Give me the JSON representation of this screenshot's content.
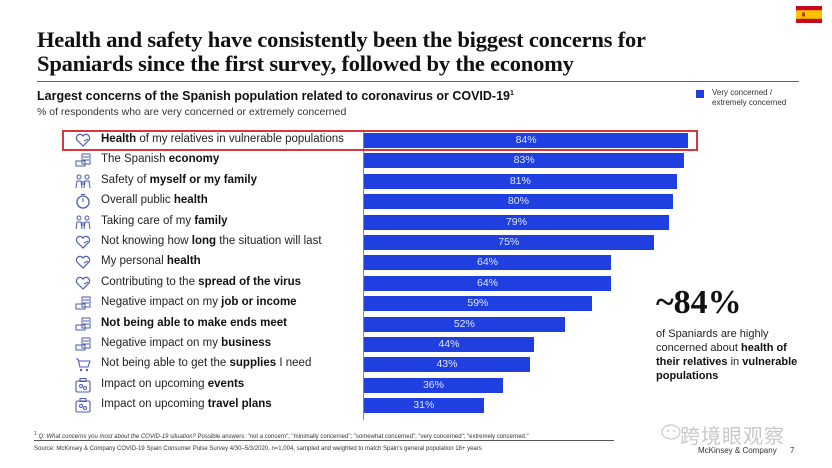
{
  "slide": {
    "title_line1": "Health and safety have consistently been the biggest concerns for",
    "title_line2": "Spaniards since the first survey, followed by the economy",
    "flag_icon": "spain-flag-icon",
    "brand": "McKinsey & Company",
    "page_number": "7"
  },
  "colors": {
    "bar": "#1f3fe0",
    "highlight": "#d9363e",
    "flag_red": "#c60b1e",
    "flag_yellow": "#ffc400"
  },
  "callout": {
    "stat": "~84%",
    "text_pre": "of Spaniards are highly concerned about ",
    "text_bold": "health of their relatives",
    "text_mid": " in ",
    "text_bold2": "vulnerable populations"
  },
  "footnote": {
    "marker": "1",
    "question": "Q: What concerns you most about the COVID-19 situation?",
    "answers": " Possible answers: \"not a concern\"; \"minimally concerned\"; \"somewhat concerned\"; \"very concerned\"; \"extremely concerned.\""
  },
  "source": "Source: McKinsey & Company COVID-19 Spain Consumer Pulse Survey 4/30–5/3/2020, n=1,004, sampled and weighted to match Spain's general population 18+ years",
  "watermark": "跨境眼观察",
  "chart_data": {
    "type": "bar",
    "orientation": "horizontal",
    "title": "Largest concerns of the Spanish population related to coronavirus or COVID-19",
    "title_superscript": "1",
    "subtitle": "% of respondents who are very concerned or extremely concerned",
    "legend": [
      {
        "name": "Very concerned / extremely concerned",
        "color": "#1f3fe0"
      }
    ],
    "legend_position": "top-right",
    "xlim": [
      0,
      100
    ],
    "grid": false,
    "highlighted_index": 0,
    "categories": [
      {
        "pre": "",
        "bold": "Health",
        "post": " of my relatives in vulnerable populations",
        "icon": "heart-hand-icon"
      },
      {
        "pre": "The Spanish ",
        "bold": "economy",
        "post": "",
        "icon": "money-stack-icon"
      },
      {
        "pre": "Safety of ",
        "bold": "myself or my family",
        "post": "",
        "icon": "family-icon"
      },
      {
        "pre": "Overall public ",
        "bold": "health",
        "post": "",
        "icon": "stopwatch-icon"
      },
      {
        "pre": "Taking care of my ",
        "bold": "family",
        "post": "",
        "icon": "family-icon"
      },
      {
        "pre": "Not knowing how ",
        "bold": "long",
        "post": " the situation will last",
        "icon": "heart-hand-icon"
      },
      {
        "pre": "My personal ",
        "bold": "health",
        "post": "",
        "icon": "heart-hand-icon"
      },
      {
        "pre": "Contributing to the ",
        "bold": "spread of the virus",
        "post": "",
        "icon": "heart-hand-icon"
      },
      {
        "pre": "Negative impact on my ",
        "bold": "job or income",
        "post": "",
        "icon": "money-stack-icon"
      },
      {
        "pre": "",
        "bold": "Not being able to make ends meet",
        "post": "",
        "icon": "money-stack-icon"
      },
      {
        "pre": "Negative impact on my ",
        "bold": "business",
        "post": "",
        "icon": "money-stack-icon"
      },
      {
        "pre": "Not being able to get the ",
        "bold": "supplies",
        "post": " I need",
        "icon": "shopping-cart-icon"
      },
      {
        "pre": "Impact on upcoming ",
        "bold": "events",
        "post": "",
        "icon": "suitcase-icon"
      },
      {
        "pre": "Impact on upcoming ",
        "bold": "travel plans",
        "post": "",
        "icon": "suitcase-icon"
      }
    ],
    "values": [
      84,
      83,
      81,
      80,
      79,
      75,
      64,
      64,
      59,
      52,
      44,
      43,
      36,
      31
    ],
    "value_labels": [
      "84%",
      "83%",
      "81%",
      "80%",
      "79%",
      "75%",
      "64%",
      "64%",
      "59%",
      "52%",
      "44%",
      "43%",
      "36%",
      "31%"
    ]
  }
}
